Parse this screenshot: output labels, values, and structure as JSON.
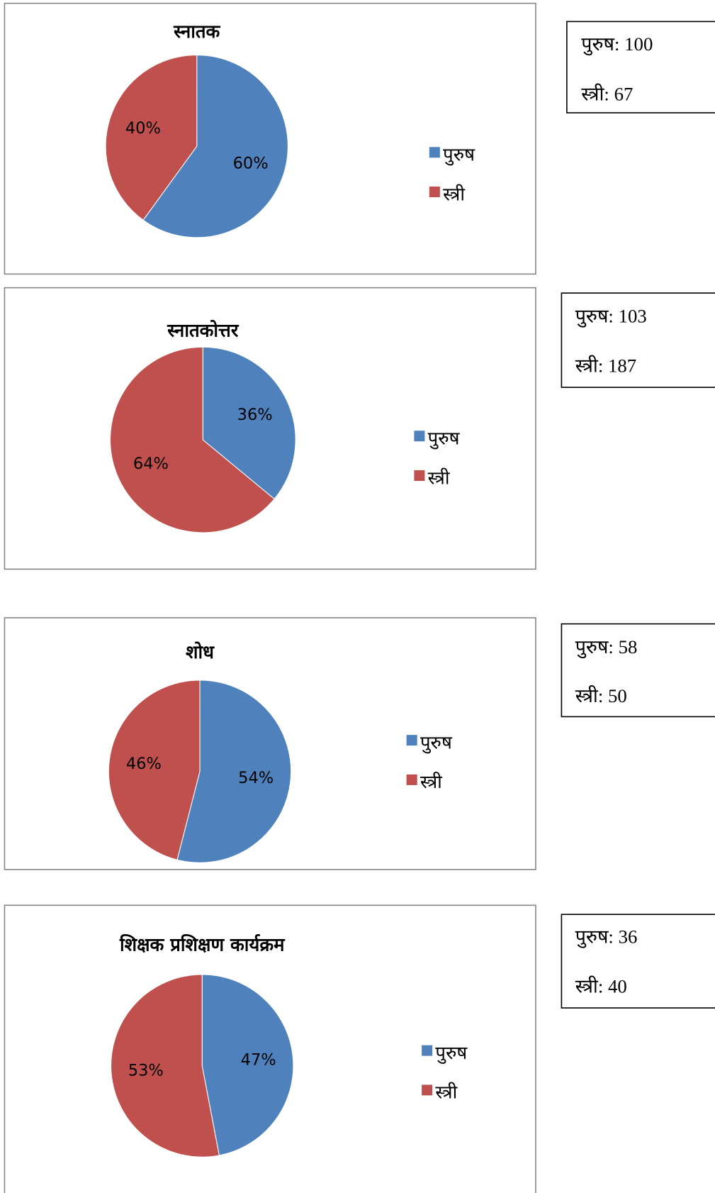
{
  "chart_data": [
    {
      "type": "pie",
      "title": "स्नातक",
      "categories": [
        "पुरुष",
        "स्त्री"
      ],
      "values": [
        60,
        40
      ],
      "value_labels": [
        "60%",
        "40%"
      ],
      "colors": [
        "#4f81bd",
        "#c0504d"
      ],
      "legend": "right"
    },
    {
      "type": "pie",
      "title": "स्नातकोत्तर",
      "categories": [
        "पुरुष",
        "स्त्री"
      ],
      "values": [
        36,
        64
      ],
      "value_labels": [
        "36%",
        "64%"
      ],
      "colors": [
        "#4f81bd",
        "#c0504d"
      ],
      "legend": "right"
    },
    {
      "type": "pie",
      "title": "शोध",
      "categories": [
        "पुरुष",
        "स्त्री"
      ],
      "values": [
        54,
        46
      ],
      "value_labels": [
        "54%",
        "46%"
      ],
      "colors": [
        "#4f81bd",
        "#c0504d"
      ],
      "legend": "right"
    },
    {
      "type": "pie",
      "title": "शिक्षक प्रशिक्षण कार्यक्रम",
      "categories": [
        "पुरुष",
        "स्त्री"
      ],
      "values": [
        47,
        53
      ],
      "value_labels": [
        "47%",
        "53%"
      ],
      "colors": [
        "#4f81bd",
        "#c0504d"
      ],
      "legend": "right"
    }
  ],
  "count_boxes": [
    {
      "lines": [
        "पुरुष: 100",
        "स्त्री: 67"
      ]
    },
    {
      "lines": [
        "पुरुष: 103",
        "स्त्री: 187"
      ]
    },
    {
      "lines": [
        "पुरुष: 58",
        "स्त्री: 50"
      ]
    },
    {
      "lines": [
        "पुरुष: 36",
        "स्त्री: 40"
      ]
    }
  ]
}
